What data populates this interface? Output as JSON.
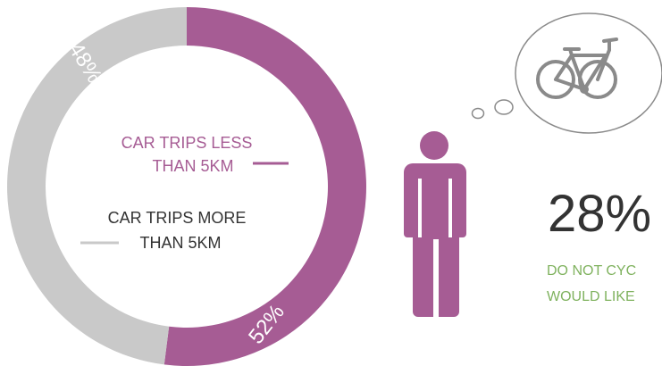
{
  "chart_data": {
    "type": "pie",
    "variant": "donut",
    "categories": [
      "CAR TRIPS LESS THAN 5KM",
      "CAR TRIPS MORE THAN 5KM"
    ],
    "values": [
      52,
      48
    ],
    "value_labels": [
      "52%",
      "48%"
    ],
    "colors": [
      "#a65c94",
      "#c9c9c9"
    ]
  },
  "labels": {
    "less_line1": "CAR TRIPS LESS",
    "less_line2": "THAN 5KM",
    "more_line1": "CAR TRIPS MORE",
    "more_line2": "THAN 5KM"
  },
  "stat": {
    "value": "28%",
    "line1": "DO NOT CYC",
    "line2": "WOULD LIKE"
  },
  "icons": {
    "person": "person-icon",
    "thought": "thought-bubble-icon",
    "bicycle": "bicycle-icon"
  },
  "colors": {
    "accent": "#a65c94",
    "gray": "#c9c9c9",
    "green": "#7fb25e",
    "dark_text": "#333333"
  }
}
